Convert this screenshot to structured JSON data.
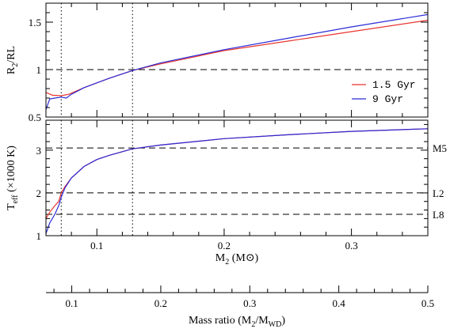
{
  "chart_data": [
    {
      "type": "line",
      "ylabel": "R2/RL",
      "ylabel_main": "R",
      "ylabel_sub": "2",
      "ylabel_tail": "/RL",
      "xlim": [
        0.06,
        0.36
      ],
      "ylim": [
        0.5,
        1.7
      ],
      "yticks": [
        0.5,
        1,
        1.5
      ],
      "ytick_labels": [
        "0.5",
        "1",
        "1.5"
      ],
      "legend_position": "right",
      "hlines": [
        1.0
      ],
      "vlines": [
        0.072,
        0.128
      ],
      "series": [
        {
          "name": "1.5 Gyr",
          "color": "#e8352f",
          "x": [
            0.06,
            0.065,
            0.072,
            0.078,
            0.09,
            0.11,
            0.128,
            0.15,
            0.2,
            0.25,
            0.3,
            0.36
          ],
          "y": [
            0.76,
            0.73,
            0.725,
            0.74,
            0.81,
            0.91,
            0.99,
            1.06,
            1.2,
            1.3,
            1.4,
            1.52
          ]
        },
        {
          "name": "9 Gyr",
          "color": "#2b2bd8",
          "x": [
            0.06,
            0.063,
            0.067,
            0.072,
            0.076,
            0.08,
            0.09,
            0.11,
            0.128,
            0.15,
            0.2,
            0.25,
            0.3,
            0.36
          ],
          "y": [
            0.58,
            0.69,
            0.7,
            0.71,
            0.7,
            0.74,
            0.81,
            0.91,
            0.99,
            1.07,
            1.21,
            1.33,
            1.45,
            1.58
          ]
        }
      ]
    },
    {
      "type": "line",
      "ylabel": "Teff (×1000 K)",
      "ylabel_main": "T",
      "ylabel_sub": "eff",
      "ylabel_tail": " (×1000 K)",
      "xlabel": "M2 (M⊙)",
      "xlabel_main": "M",
      "xlabel_sub": "2",
      "xlabel_tail": " (M⊙)",
      "xlim": [
        0.06,
        0.36
      ],
      "ylim": [
        1.0,
        3.7
      ],
      "xticks": [
        0.1,
        0.2,
        0.3
      ],
      "xtick_labels": [
        "0.1",
        "0.2",
        "0.3"
      ],
      "yticks": [
        1,
        2,
        3
      ],
      "ytick_labels": [
        "1",
        "2",
        "3"
      ],
      "vlines": [
        0.072,
        0.128
      ],
      "hlines": [
        {
          "value": 3.05,
          "label": "M5"
        },
        {
          "value": 2.0,
          "label": "L2"
        },
        {
          "value": 1.5,
          "label": "L8"
        }
      ],
      "series": [
        {
          "name": "1.5 Gyr",
          "color": "#e8352f",
          "x": [
            0.06,
            0.063,
            0.067,
            0.07,
            0.072,
            0.075,
            0.08,
            0.09,
            0.1,
            0.11,
            0.128,
            0.15,
            0.2,
            0.25,
            0.3,
            0.36
          ],
          "y": [
            1.4,
            1.55,
            1.7,
            1.8,
            2.0,
            2.15,
            2.35,
            2.62,
            2.78,
            2.88,
            3.03,
            3.12,
            3.27,
            3.36,
            3.44,
            3.5
          ]
        },
        {
          "name": "9 Gyr",
          "color": "#2b2bd8",
          "x": [
            0.06,
            0.063,
            0.067,
            0.07,
            0.072,
            0.075,
            0.08,
            0.09,
            0.1,
            0.11,
            0.128,
            0.15,
            0.2,
            0.25,
            0.3,
            0.36
          ],
          "y": [
            1.05,
            1.3,
            1.5,
            1.7,
            1.9,
            2.12,
            2.35,
            2.62,
            2.78,
            2.88,
            3.03,
            3.12,
            3.27,
            3.36,
            3.44,
            3.5
          ]
        }
      ]
    },
    {
      "type": "axis",
      "xlabel": "Mass ratio (M2/MWD)",
      "xlabel_pre": "Mass ratio (M",
      "xlabel_sub1": "2",
      "xlabel_mid": "/M",
      "xlabel_sub2": "WD",
      "xlabel_end": ")",
      "xlim": [
        0.071,
        0.5
      ],
      "xticks": [
        0.1,
        0.2,
        0.3,
        0.4,
        0.5
      ],
      "xtick_labels": [
        "0.1",
        "0.2",
        "0.3",
        "0.4",
        "0.5"
      ]
    }
  ]
}
